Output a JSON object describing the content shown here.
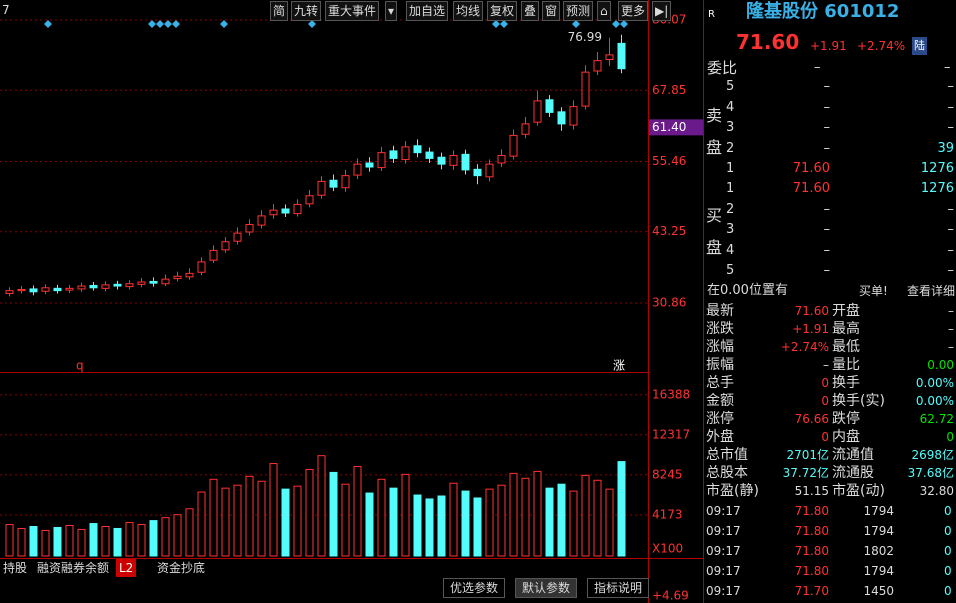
{
  "toolbar": {
    "corner": "7",
    "buttons": [
      "简",
      "九转",
      "重大事件",
      "▾",
      "加自选",
      "均线",
      "复权",
      "叠",
      "窗",
      "预测",
      "⌂",
      "更多",
      "▶|"
    ]
  },
  "chart_data": {
    "type": "candlestick",
    "annotation": 76.99,
    "price_tag": {
      "value": 61.4,
      "label": "61.40"
    },
    "markers": [
      "q",
      "涨"
    ],
    "ylim": [
      19.2,
      80.07
    ],
    "yticks": [
      80.07,
      67.85,
      55.46,
      43.25,
      30.86
    ],
    "open": [
      32.5,
      33,
      33.3,
      32.9,
      33.4,
      33.1,
      33.3,
      33.9,
      33.4,
      34.1,
      33.7,
      34.1,
      34.6,
      34.2,
      35.1,
      35.4,
      36.2,
      38.3,
      40.1,
      41.6,
      43.2,
      44.4,
      46.2,
      47.2,
      46.4,
      48.1,
      49.6,
      52.2,
      50.9,
      53.1,
      55.2,
      54.4,
      57.3,
      55.8,
      58.2,
      57.1,
      56.2,
      54.8,
      56.7,
      54.1,
      52.8,
      55.2,
      56.4,
      60.2,
      62.3,
      66.2,
      64.1,
      61.8,
      65.1,
      71.2,
      73.2,
      76.0
    ],
    "high": [
      33.6,
      33.8,
      33.9,
      34.1,
      34.0,
      34.0,
      34.4,
      34.5,
      34.6,
      34.7,
      34.8,
      35.2,
      35.3,
      35.8,
      36.3,
      36.9,
      38.8,
      40.9,
      42.3,
      44.0,
      45.4,
      47.0,
      48.1,
      48.0,
      48.9,
      50.5,
      52.9,
      53.2,
      54.0,
      56.0,
      56.2,
      58.0,
      58.2,
      59.0,
      59.3,
      57.9,
      57.0,
      57.4,
      57.5,
      55.0,
      55.8,
      57.6,
      61.0,
      63.2,
      67.8,
      67.0,
      64.9,
      66.1,
      72.2,
      74.5,
      76.99,
      77.5
    ],
    "low": [
      32.0,
      32.5,
      32.2,
      32.4,
      32.5,
      32.6,
      32.8,
      33.0,
      32.9,
      33.2,
      33.2,
      33.6,
      33.7,
      33.8,
      34.6,
      34.9,
      35.7,
      37.8,
      39.6,
      41.0,
      42.6,
      43.8,
      45.5,
      45.8,
      45.9,
      47.5,
      49.0,
      50.3,
      50.2,
      52.4,
      53.7,
      53.8,
      55.2,
      55.1,
      56.2,
      55.2,
      54.1,
      54.0,
      53.2,
      51.5,
      52.0,
      54.5,
      55.8,
      59.5,
      61.7,
      63.2,
      60.8,
      61.0,
      64.5,
      70.5,
      72.1,
      70.8
    ],
    "close": [
      33,
      33.2,
      32.8,
      33.5,
      33,
      33.4,
      33.8,
      33.5,
      34,
      33.8,
      34.2,
      34.5,
      34.3,
      35,
      35.5,
      36,
      38,
      40,
      41.5,
      43,
      44.5,
      46,
      47,
      46.5,
      48,
      49.5,
      52,
      51,
      53,
      55,
      54.5,
      57,
      56,
      58,
      57,
      56,
      55,
      56.5,
      54,
      53,
      55,
      56.5,
      60,
      62,
      66,
      64,
      62,
      65,
      71,
      73,
      74,
      71.6
    ]
  },
  "volume": {
    "type": "bar",
    "unit_label": "X100",
    "ylim": [
      0,
      18100
    ],
    "yticks": [
      4173,
      8245,
      12317,
      16388
    ],
    "values": [
      3200,
      2800,
      3000,
      2600,
      2900,
      3100,
      2700,
      3300,
      3000,
      2800,
      3400,
      3200,
      3600,
      3900,
      4200,
      4800,
      6500,
      7800,
      6900,
      7200,
      8100,
      7600,
      9400,
      6800,
      7100,
      8800,
      10200,
      8500,
      7300,
      9100,
      6400,
      7800,
      6900,
      8300,
      6200,
      5800,
      6100,
      7400,
      6600,
      5900,
      6800,
      7200,
      8400,
      7900,
      8600,
      6900,
      7300,
      6600,
      8200,
      7700,
      6800,
      9600
    ],
    "bottom_value": "+4.69"
  },
  "tabs": [
    "持股",
    "融资融券余额",
    "L2",
    "资金抄底"
  ],
  "param_buttons": [
    "优选参数",
    "默认参数",
    "指标说明"
  ],
  "quote": {
    "badge": "R",
    "name": "隆基股份 601012",
    "price": "71.60",
    "change": "+1.91",
    "pct": "+2.74%",
    "tag": "陆",
    "ratio": [
      "委比",
      "–",
      "–"
    ],
    "sell_label": "卖盘",
    "buy_label": "买盘",
    "sell": [
      [
        "5",
        "–",
        "–"
      ],
      [
        "4",
        "–",
        "–"
      ],
      [
        "3",
        "–",
        "–"
      ],
      [
        "2",
        "–",
        "39"
      ],
      [
        "1",
        "71.60",
        "1276"
      ]
    ],
    "buy": [
      [
        "1",
        "71.60",
        "1276"
      ],
      [
        "2",
        "–",
        "–"
      ],
      [
        "3",
        "–",
        "–"
      ],
      [
        "4",
        "–",
        "–"
      ],
      [
        "5",
        "–",
        "–"
      ]
    ],
    "notice": [
      "在0.00位置有",
      "买单!",
      "查看详细"
    ],
    "rows": [
      [
        "最新",
        "71.60",
        "开盘",
        "–"
      ],
      [
        "涨跌",
        "+1.91",
        "最高",
        "–"
      ],
      [
        "涨幅",
        "+2.74%",
        "最低",
        "–"
      ],
      [
        "振幅",
        "–",
        "量比",
        "0.00"
      ],
      [
        "总手",
        "0",
        "换手",
        "0.00%"
      ],
      [
        "金额",
        "0",
        "换手(实)",
        "0.00%"
      ],
      [
        "涨停",
        "76.66",
        "跌停",
        "62.72"
      ],
      [
        "外盘",
        "0",
        "内盘",
        "0"
      ],
      [
        "总市值",
        "2701亿",
        "流通值",
        "2698亿"
      ],
      [
        "总股本",
        "37.72亿",
        "流通股",
        "37.68亿"
      ],
      [
        "市盈(静)",
        "51.15",
        "市盈(动)",
        "32.80"
      ]
    ],
    "ticks": [
      [
        "09:17",
        "71.80",
        "1794",
        "0"
      ],
      [
        "09:17",
        "71.80",
        "1794",
        "0"
      ],
      [
        "09:17",
        "71.80",
        "1802",
        "0"
      ],
      [
        "09:17",
        "71.80",
        "1794",
        "0"
      ],
      [
        "09:17",
        "71.70",
        "1450",
        "0"
      ]
    ]
  }
}
